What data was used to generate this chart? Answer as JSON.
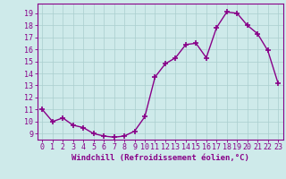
{
  "x": [
    0,
    1,
    2,
    3,
    4,
    5,
    6,
    7,
    8,
    9,
    10,
    11,
    12,
    13,
    14,
    15,
    16,
    17,
    18,
    19,
    20,
    21,
    22,
    23
  ],
  "y": [
    11,
    10,
    10.3,
    9.7,
    9.5,
    9.0,
    8.8,
    8.7,
    8.8,
    9.2,
    10.4,
    13.7,
    14.8,
    15.3,
    16.4,
    16.5,
    15.3,
    17.8,
    19.1,
    19.0,
    18.0,
    17.3,
    15.9,
    13.2
  ],
  "line_color": "#880088",
  "marker": "+",
  "marker_size": 4,
  "marker_lw": 1.2,
  "bg_color": "#ceeaea",
  "grid_color": "#aacece",
  "ylabel_ticks": [
    9,
    10,
    11,
    12,
    13,
    14,
    15,
    16,
    17,
    18,
    19
  ],
  "ylim": [
    8.5,
    19.8
  ],
  "xlim": [
    -0.5,
    23.5
  ],
  "xlabel": "Windchill (Refroidissement éolien,°C)",
  "xlabel_fontsize": 6.5,
  "tick_fontsize": 6,
  "tick_color": "#880088",
  "spine_color": "#880088",
  "line_width": 1.0
}
